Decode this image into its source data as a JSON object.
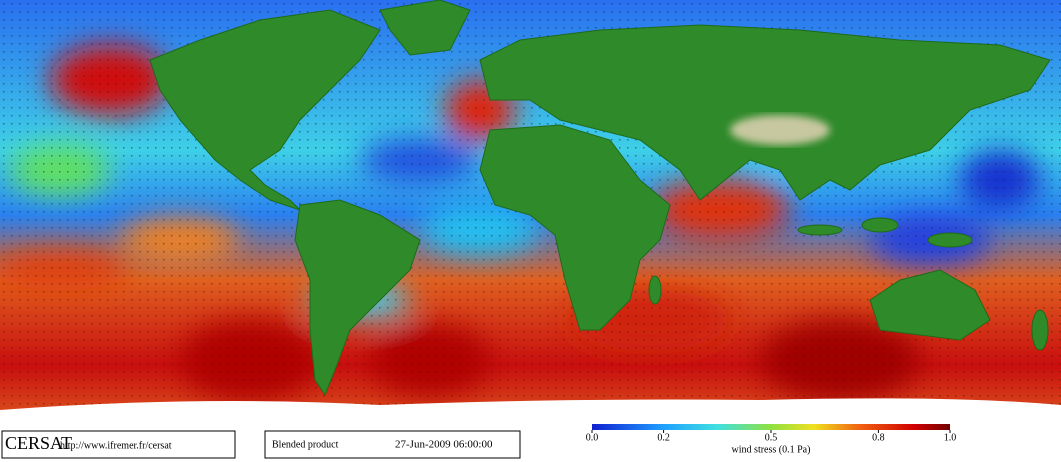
{
  "footer": {
    "logo": "CERSAT",
    "url": "http://www.ifremer.fr/cersat",
    "product": "Blended product",
    "date": "27-Jun-2009 06:00:00"
  },
  "colorbar": {
    "label": "wind stress (0.1 Pa)",
    "lim": [
      0,
      1
    ],
    "ticks": [
      {
        "value": 0,
        "label": "0.0"
      },
      0.2,
      0.5,
      0.8,
      {
        "value": 1,
        "label": "1.0"
      }
    ]
  }
}
